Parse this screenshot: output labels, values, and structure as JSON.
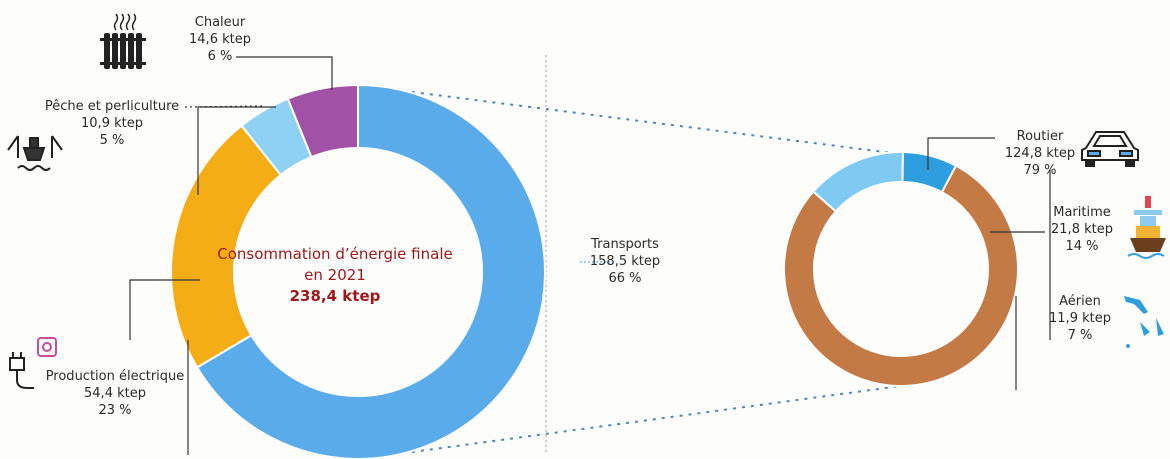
{
  "chart_data": [
    {
      "type": "pie",
      "title": "Consommation d’énergie finale en 2021",
      "total": "238,4 ktep",
      "slices": [
        {
          "name": "Transports",
          "value_text": "158,5 ktep",
          "percent_text": "66 %",
          "value": 158.5,
          "color": "#5aabea"
        },
        {
          "name": "Production électrique",
          "value_text": "54,4 ktep",
          "percent_text": "23 %",
          "value": 54.4,
          "color": "#f5ad16"
        },
        {
          "name": "Pêche et perliculture",
          "value_text": "10,9 ktep",
          "percent_text": "5 %",
          "value": 10.9,
          "color": "#8ed1f3"
        },
        {
          "name": "Chaleur",
          "value_text": "14,6 ktep",
          "percent_text": "6 %",
          "value": 14.6,
          "color": "#a252a6"
        }
      ]
    },
    {
      "type": "pie",
      "title": "",
      "slices": [
        {
          "name": "Routier",
          "value_text": "124,8 ktep",
          "percent_text": "79 %",
          "value": 124.8,
          "color": "#c37a45"
        },
        {
          "name": "Maritime",
          "value_text": "21,8 ktep",
          "percent_text": "14 %",
          "value": 21.8,
          "color": "#7fcaf2"
        },
        {
          "name": "Aérien",
          "value_text": "11,9 ktep",
          "percent_text": "7 %",
          "value": 11.9,
          "color": "#2f9ede"
        }
      ]
    }
  ],
  "icons": {
    "chaleur": "radiator-icon",
    "peche": "fishing-boat-icon",
    "production": "plug-socket-icon",
    "routier": "car-icon",
    "maritime": "ship-icon",
    "aerien": "airplane-icon"
  }
}
